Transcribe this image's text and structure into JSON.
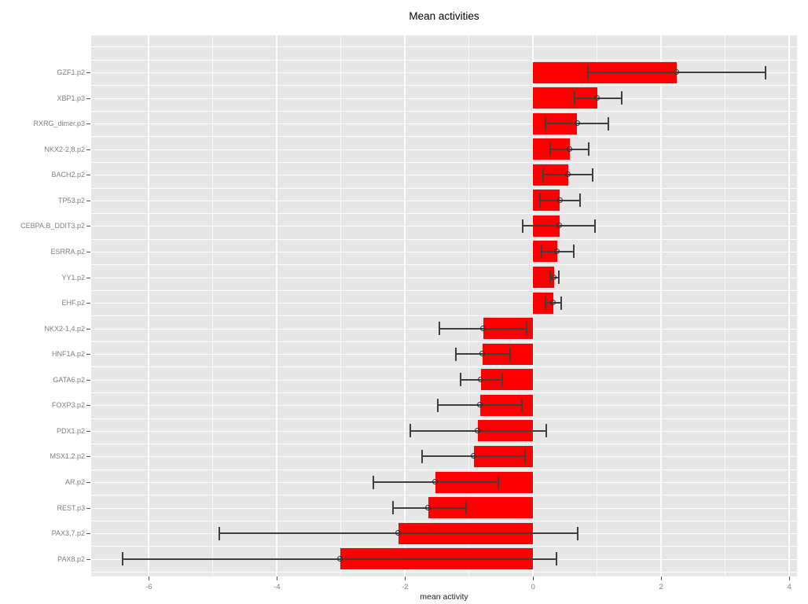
{
  "figure": {
    "title": "Mean activities",
    "x_axis_label": "mean activity"
  },
  "chart_data": {
    "type": "bar",
    "orientation": "horizontal",
    "title": "Mean activities",
    "xlabel": "mean activity",
    "ylabel": "",
    "xlim": [
      -6.9,
      4.12
    ],
    "xticks": [
      -6,
      -4,
      -2,
      0,
      2,
      4
    ],
    "minor_xticks": [
      -5,
      -3,
      -1,
      1,
      3
    ],
    "grid": true,
    "legend": false,
    "panel_bg": "#E6E6E6",
    "bar_color": "#FF0000",
    "errorbar_color": "#3F3F3F",
    "categories": [
      "GZF1.p2",
      "XBP1.p3",
      "RXRG_dimer.p3",
      "NKX2-2,8.p2",
      "BACH2.p2",
      "TP53.p2",
      "CEBPA.B_DDIT3.p2",
      "ESRRA.p2",
      "YY1.p2",
      "EHF.p2",
      "NKX2-1,4.p2",
      "HNF1A.p2",
      "GATA6.p2",
      "FOXP3.p2",
      "PDX1.p2",
      "MSX1,2.p2",
      "AR.p2",
      "REST.p3",
      "PAX3,7.p2",
      "PAX8.p2"
    ],
    "values": [
      2.24,
      1.0,
      0.69,
      0.57,
      0.55,
      0.42,
      0.41,
      0.38,
      0.33,
      0.32,
      -0.78,
      -0.79,
      -0.81,
      -0.83,
      -0.86,
      -0.93,
      -1.52,
      -1.63,
      -2.1,
      -3.01
    ],
    "error_low": [
      0.85,
      0.65,
      0.19,
      0.27,
      0.16,
      0.11,
      -0.16,
      0.13,
      0.26,
      0.19,
      -1.47,
      -1.21,
      -1.13,
      -1.49,
      -1.92,
      -1.74,
      -2.49,
      -2.19,
      -4.9,
      -6.41
    ],
    "error_high": [
      3.63,
      1.38,
      1.17,
      0.87,
      0.93,
      0.73,
      0.96,
      0.63,
      0.4,
      0.44,
      -0.1,
      -0.36,
      -0.48,
      -0.18,
      0.2,
      -0.13,
      -0.55,
      -1.05,
      0.7,
      0.37
    ]
  }
}
